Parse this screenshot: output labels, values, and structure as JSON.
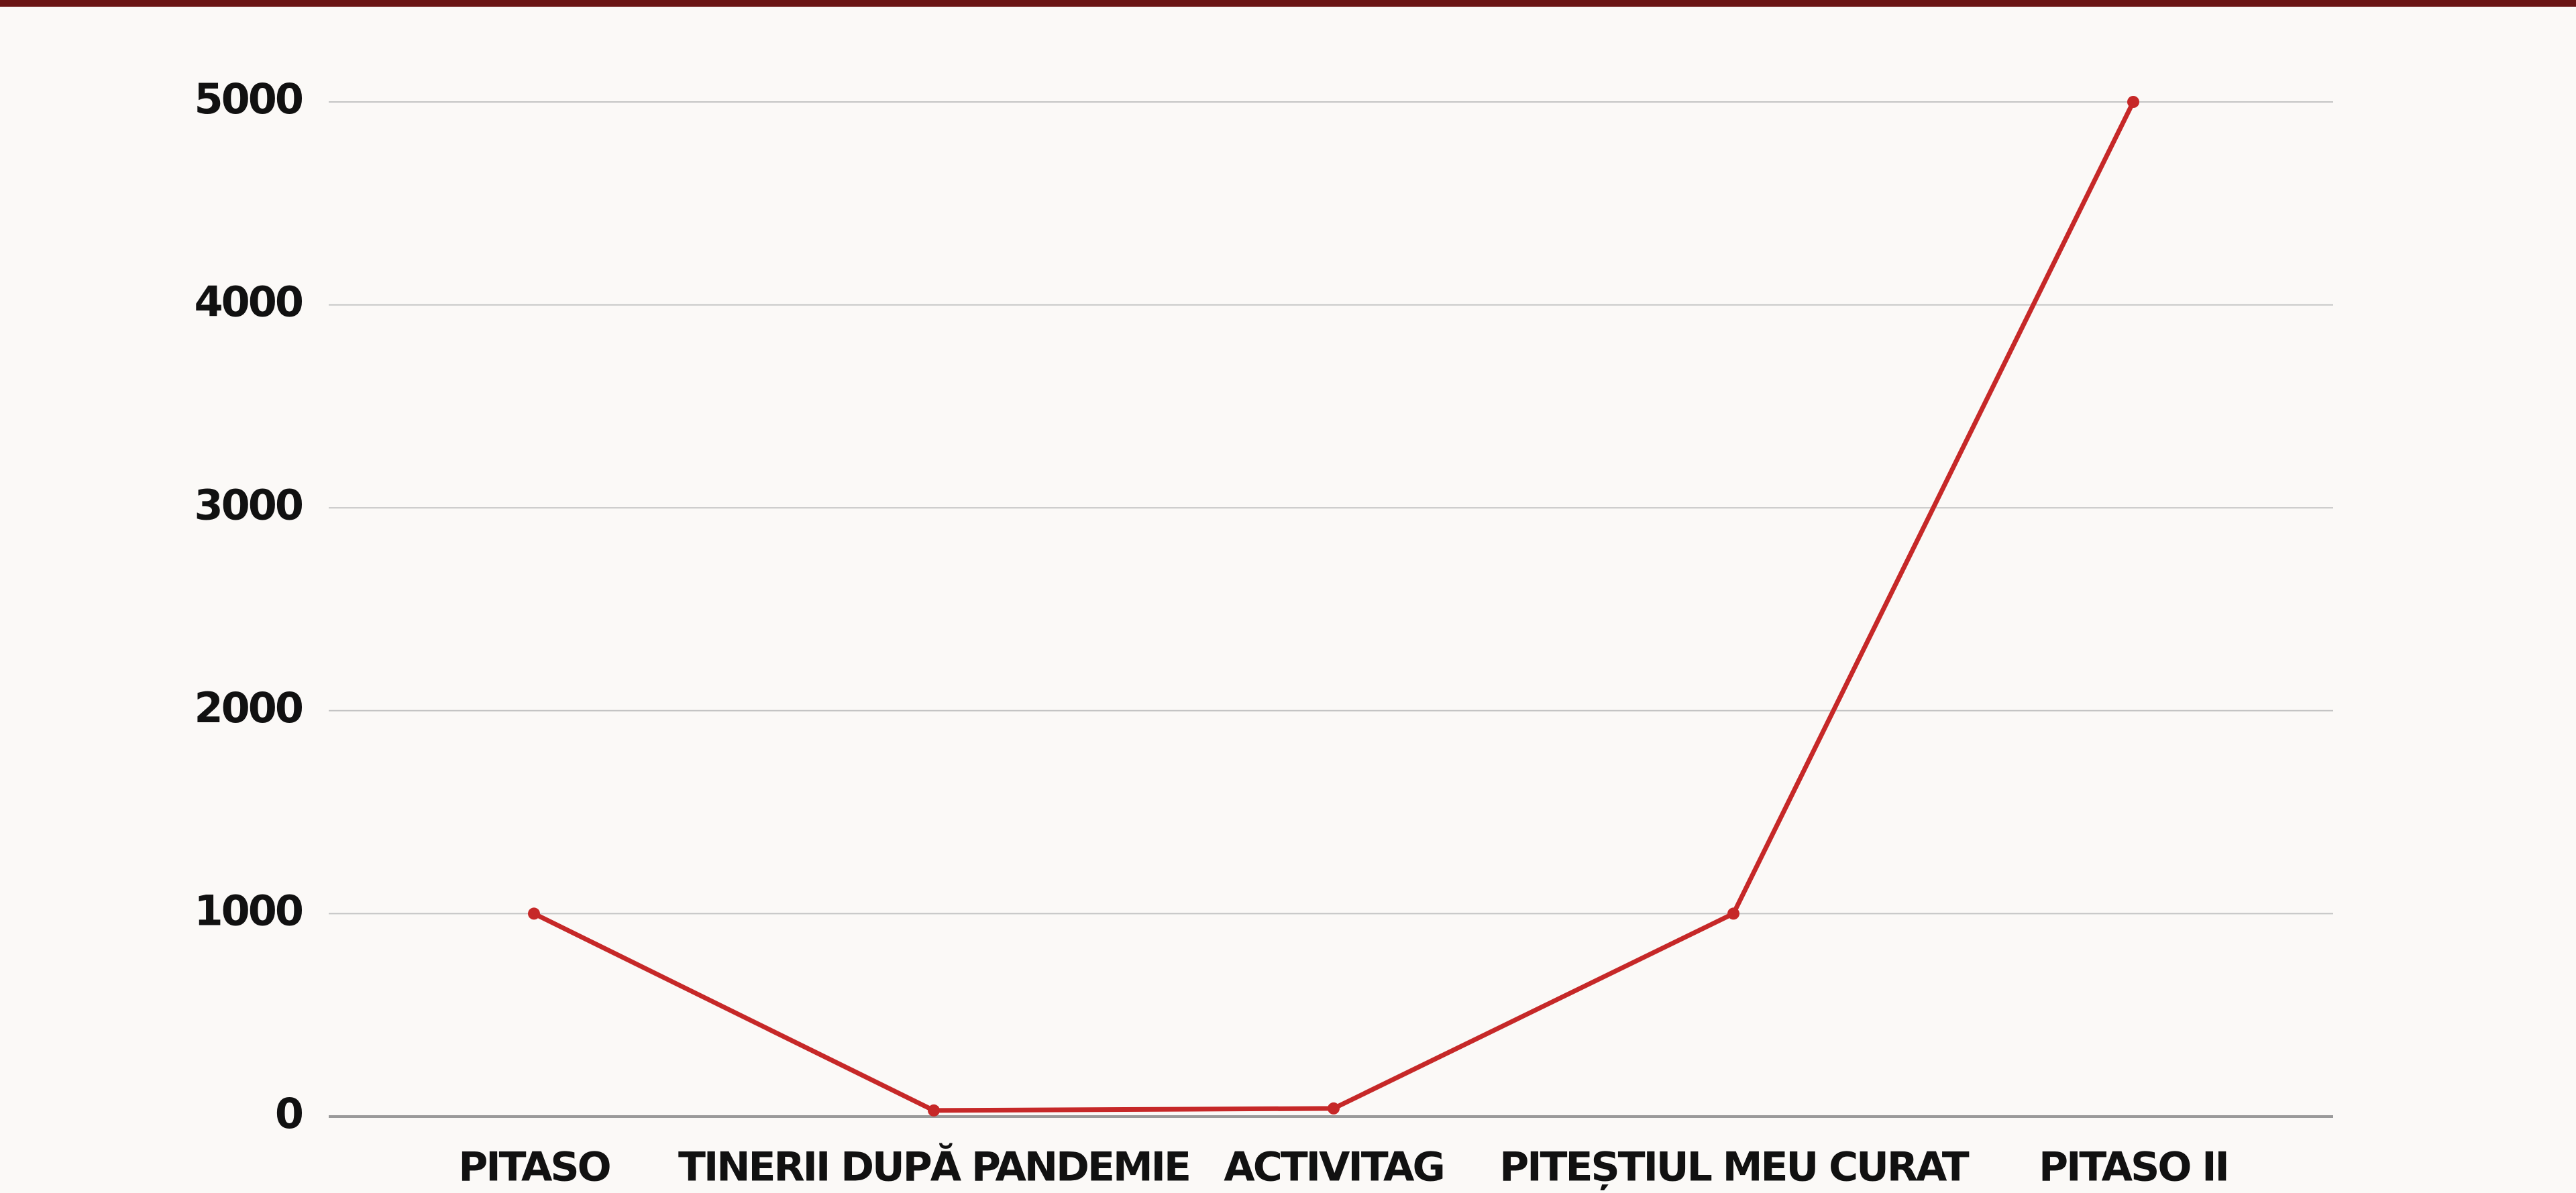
{
  "chart_data": {
    "type": "line",
    "categories": [
      "PITASO",
      "TINERII DUPĂ PANDEMIE",
      "ACTIVITAG",
      "PITEȘTIUL MEU CURAT",
      "PITASO II"
    ],
    "values": [
      1000,
      30,
      40,
      1000,
      5000
    ],
    "color": "#c62828",
    "ylim": [
      0,
      5000
    ],
    "yticks": [
      0,
      1000,
      2000,
      3000,
      4000,
      5000
    ],
    "grid": true
  }
}
